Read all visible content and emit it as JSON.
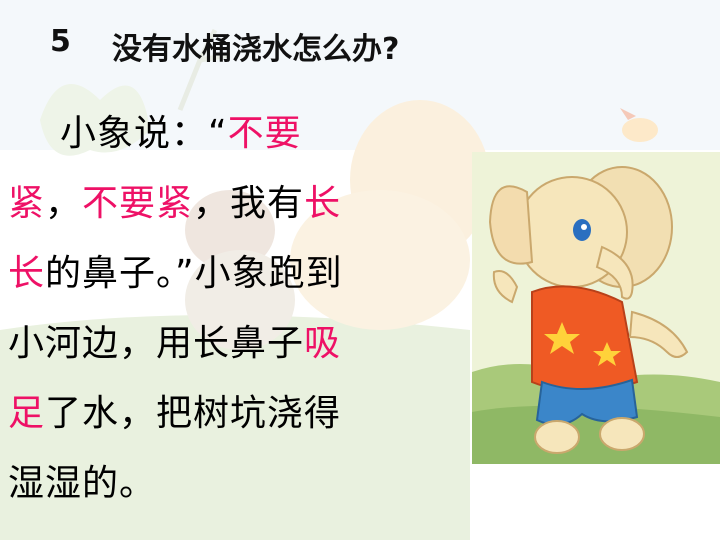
{
  "slide": {
    "number": "5",
    "title": "没有水桶浇水怎么办?"
  },
  "passage": {
    "line1": [
      {
        "t": "小象说：“"
      },
      {
        "t": "不要",
        "hl": true
      }
    ],
    "line2": [
      {
        "t": "紧",
        "hl": true
      },
      {
        "t": "，"
      },
      {
        "t": "不要紧",
        "hl": true
      },
      {
        "t": "，我有"
      },
      {
        "t": "长",
        "hl": true
      }
    ],
    "line3": [
      {
        "t": "长",
        "hl": true
      },
      {
        "t": "的鼻子。”小象跑到"
      }
    ],
    "line4": [
      {
        "t": "小河边，用长鼻子"
      },
      {
        "t": "吸",
        "hl": true
      }
    ],
    "line5": [
      {
        "t": "足",
        "hl": true
      },
      {
        "t": "了水，把树坑浇得"
      }
    ],
    "line6": [
      {
        "t": "湿湿的。"
      }
    ]
  },
  "colors": {
    "highlight": "#ee1166",
    "text": "#000000"
  }
}
